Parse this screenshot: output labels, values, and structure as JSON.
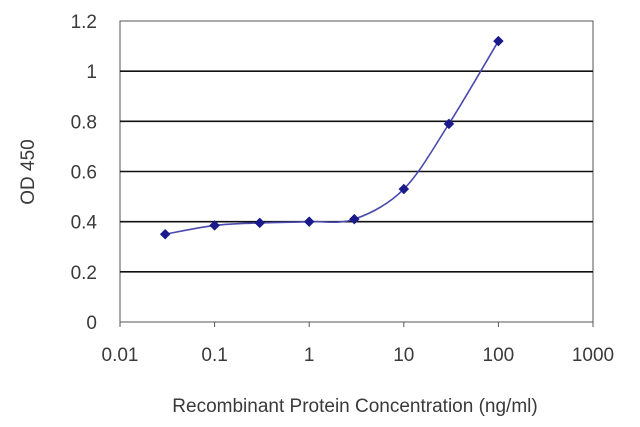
{
  "chart_data": {
    "type": "line",
    "title": "",
    "xlabel": "Recombinant Protein Concentration (ng/ml)",
    "ylabel": "OD 450",
    "x_scale": "log",
    "xlim": [
      0.01,
      1000
    ],
    "ylim": [
      0,
      1.2
    ],
    "x_ticks": [
      "0.01",
      "0.1",
      "1",
      "10",
      "100",
      "1000"
    ],
    "y_ticks": [
      "0",
      "0.2",
      "0.4",
      "0.6",
      "0.8",
      "1",
      "1.2"
    ],
    "grid": "horizontal",
    "legend": "none",
    "series": [
      {
        "color": "#1a1a8c",
        "x": [
          0.03,
          0.1,
          0.3,
          1,
          3,
          10,
          30,
          100
        ],
        "y": [
          0.35,
          0.385,
          0.395,
          0.4,
          0.41,
          0.53,
          0.79,
          1.12
        ]
      }
    ]
  }
}
